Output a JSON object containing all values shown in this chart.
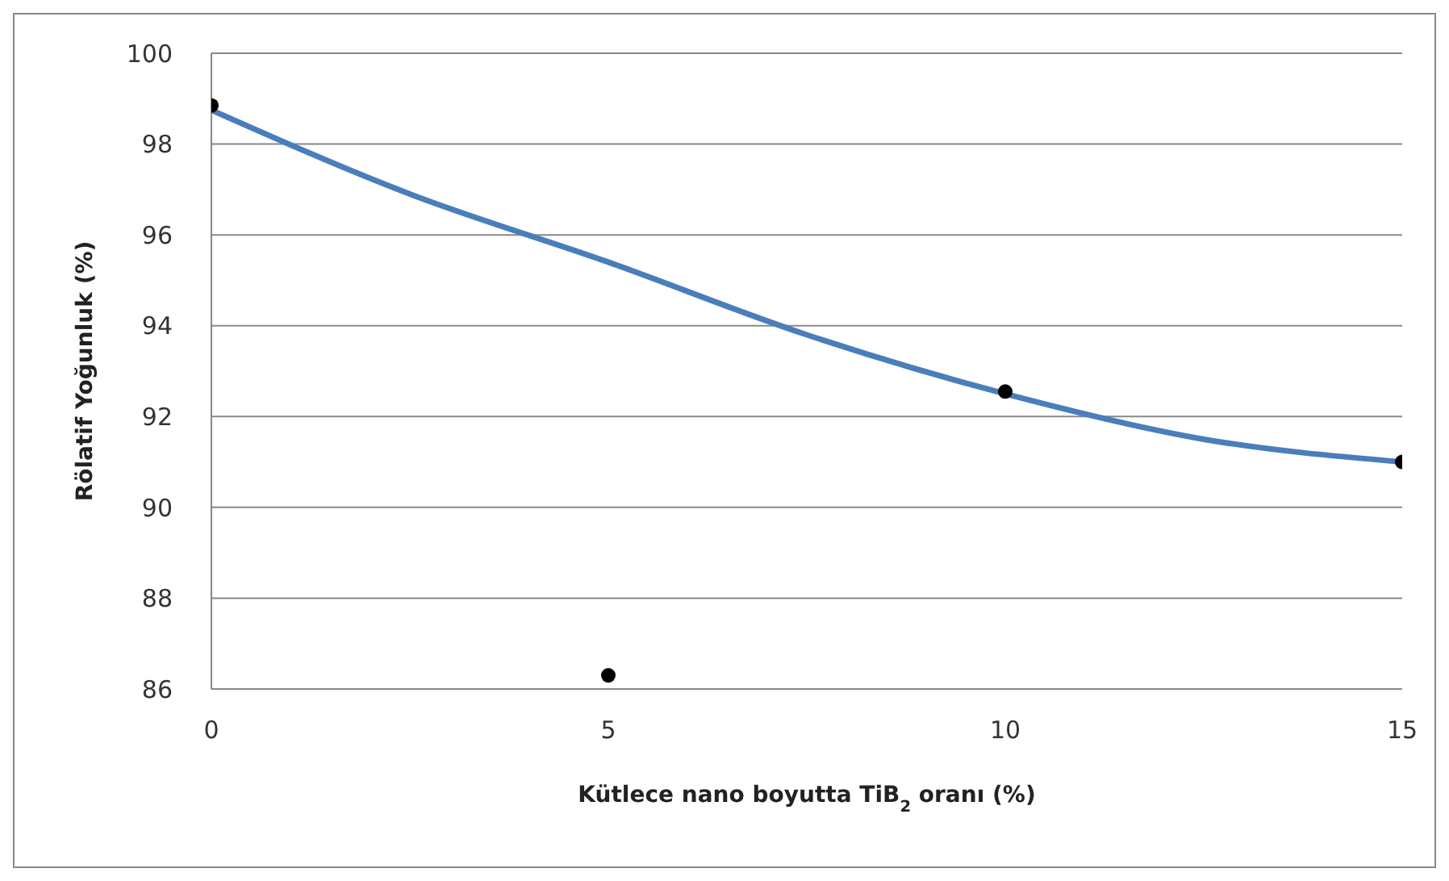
{
  "chart_data": {
    "type": "scatter",
    "xlabel": "Kütlece nano boyutta TiB$_{2}$ oranı (%)",
    "ylabel": "Rölatif Yoğunluk (%)",
    "x": [
      0,
      5,
      10,
      15
    ],
    "series": [
      {
        "color": "#000000",
        "values": [
          98.85,
          86.3,
          92.55,
          91.0
        ],
        "marker": "circle"
      },
      {
        "type": "line",
        "color": "#4a7ebb",
        "x": [
          0,
          2.5,
          5,
          7.5,
          10,
          12.5,
          15
        ],
        "values": [
          98.75,
          96.9,
          95.4,
          93.8,
          92.5,
          91.5,
          91.0
        ],
        "marker": "none"
      }
    ],
    "xlim": [
      0,
      15
    ],
    "xticks": [
      0,
      5,
      10,
      15
    ],
    "ylim": [
      86,
      100
    ],
    "yticks": [
      86,
      88,
      90,
      92,
      94,
      96,
      98,
      100
    ],
    "grid": "y"
  }
}
